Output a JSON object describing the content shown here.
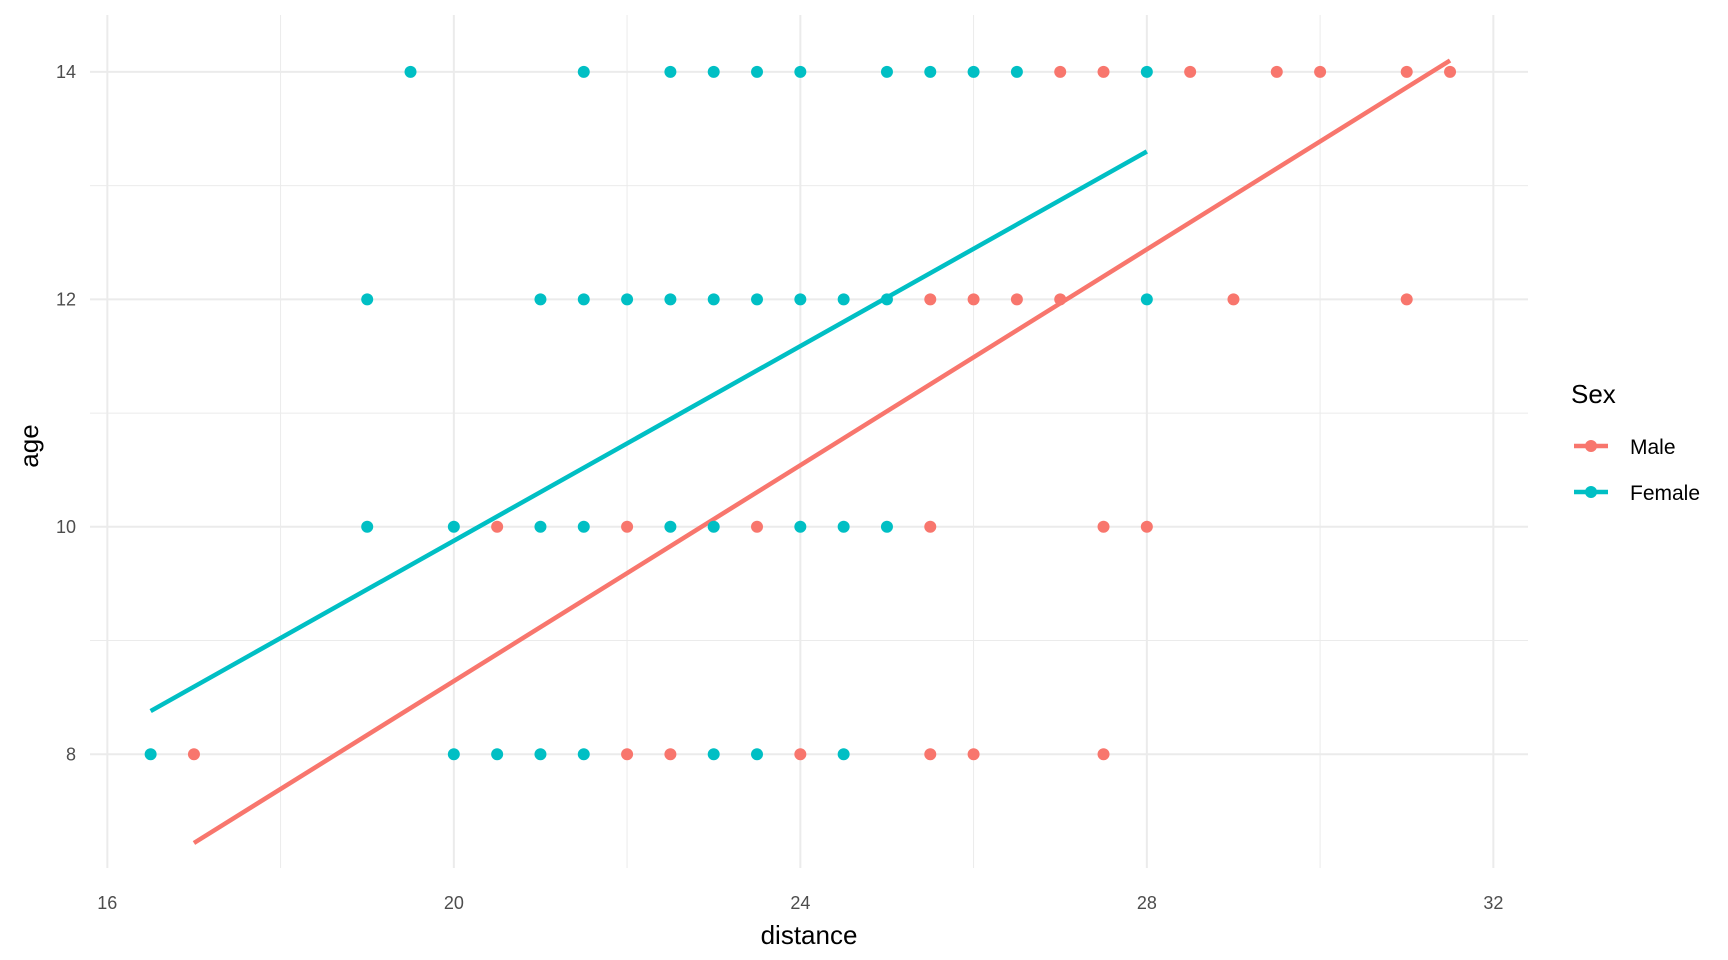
{
  "chart_data": {
    "type": "scatter",
    "xlabel": "distance",
    "ylabel": "age",
    "xlim": [
      15.8,
      32.4
    ],
    "ylim": [
      7.0,
      14.5
    ],
    "x_ticks": [
      16,
      20,
      24,
      28,
      32
    ],
    "y_ticks": [
      8,
      10,
      12,
      14
    ],
    "x_minor_ticks": [
      18,
      22,
      26,
      30
    ],
    "y_minor_ticks": [
      9,
      11,
      13
    ],
    "grid": true,
    "legend": {
      "title": "Sex",
      "position": "right",
      "entries": [
        {
          "label": "Male",
          "color": "#F8766D"
        },
        {
          "label": "Female",
          "color": "#00BFC4"
        }
      ]
    },
    "series": [
      {
        "name": "Male",
        "color": "#F8766D",
        "points": [
          {
            "x": 17.0,
            "y": 8
          },
          {
            "x": 22.0,
            "y": 8
          },
          {
            "x": 22.5,
            "y": 8
          },
          {
            "x": 24.0,
            "y": 8
          },
          {
            "x": 25.5,
            "y": 8
          },
          {
            "x": 26.0,
            "y": 8
          },
          {
            "x": 27.5,
            "y": 8
          },
          {
            "x": 20.5,
            "y": 10
          },
          {
            "x": 22.0,
            "y": 10
          },
          {
            "x": 23.5,
            "y": 10
          },
          {
            "x": 25.5,
            "y": 10
          },
          {
            "x": 27.5,
            "y": 10
          },
          {
            "x": 28.0,
            "y": 10
          },
          {
            "x": 25.5,
            "y": 12
          },
          {
            "x": 26.0,
            "y": 12
          },
          {
            "x": 26.5,
            "y": 12
          },
          {
            "x": 27.0,
            "y": 12
          },
          {
            "x": 29.0,
            "y": 12
          },
          {
            "x": 31.0,
            "y": 12
          },
          {
            "x": 27.0,
            "y": 14
          },
          {
            "x": 27.5,
            "y": 14
          },
          {
            "x": 28.5,
            "y": 14
          },
          {
            "x": 29.5,
            "y": 14
          },
          {
            "x": 30.0,
            "y": 14
          },
          {
            "x": 31.0,
            "y": 14
          },
          {
            "x": 31.5,
            "y": 14
          }
        ],
        "fit_line": {
          "x": [
            17.0,
            31.5
          ],
          "y": [
            7.22,
            14.1
          ]
        }
      },
      {
        "name": "Female",
        "color": "#00BFC4",
        "points": [
          {
            "x": 16.5,
            "y": 8
          },
          {
            "x": 20.0,
            "y": 8
          },
          {
            "x": 20.5,
            "y": 8
          },
          {
            "x": 21.0,
            "y": 8
          },
          {
            "x": 21.5,
            "y": 8
          },
          {
            "x": 23.0,
            "y": 8
          },
          {
            "x": 23.5,
            "y": 8
          },
          {
            "x": 24.5,
            "y": 8
          },
          {
            "x": 19.0,
            "y": 10
          },
          {
            "x": 20.0,
            "y": 10
          },
          {
            "x": 21.0,
            "y": 10
          },
          {
            "x": 21.5,
            "y": 10
          },
          {
            "x": 22.5,
            "y": 10
          },
          {
            "x": 23.0,
            "y": 10
          },
          {
            "x": 24.0,
            "y": 10
          },
          {
            "x": 24.5,
            "y": 10
          },
          {
            "x": 25.0,
            "y": 10
          },
          {
            "x": 19.0,
            "y": 12
          },
          {
            "x": 21.0,
            "y": 12
          },
          {
            "x": 21.5,
            "y": 12
          },
          {
            "x": 22.0,
            "y": 12
          },
          {
            "x": 22.5,
            "y": 12
          },
          {
            "x": 23.0,
            "y": 12
          },
          {
            "x": 23.5,
            "y": 12
          },
          {
            "x": 24.0,
            "y": 12
          },
          {
            "x": 24.5,
            "y": 12
          },
          {
            "x": 25.0,
            "y": 12
          },
          {
            "x": 28.0,
            "y": 12
          },
          {
            "x": 19.5,
            "y": 14
          },
          {
            "x": 21.5,
            "y": 14
          },
          {
            "x": 22.5,
            "y": 14
          },
          {
            "x": 23.0,
            "y": 14
          },
          {
            "x": 23.5,
            "y": 14
          },
          {
            "x": 24.0,
            "y": 14
          },
          {
            "x": 25.0,
            "y": 14
          },
          {
            "x": 25.5,
            "y": 14
          },
          {
            "x": 26.0,
            "y": 14
          },
          {
            "x": 26.5,
            "y": 14
          },
          {
            "x": 28.0,
            "y": 14
          }
        ],
        "fit_line": {
          "x": [
            16.5,
            28.0
          ],
          "y": [
            8.38,
            13.3
          ]
        }
      }
    ]
  }
}
